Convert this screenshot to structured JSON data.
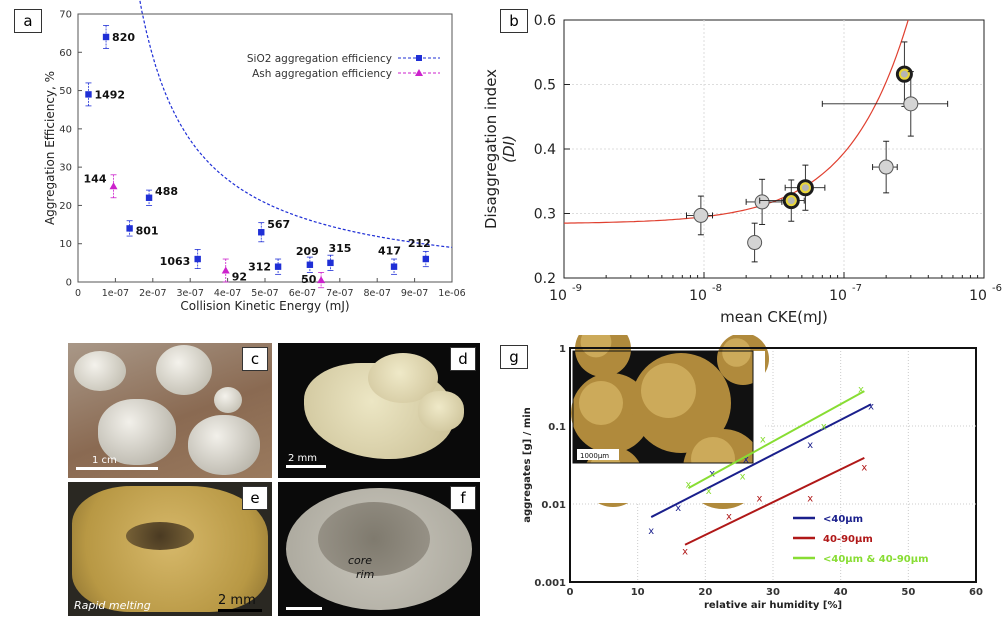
{
  "panels": {
    "a": "a",
    "b": "b",
    "c": "c",
    "d": "d",
    "e": "e",
    "f": "f",
    "g": "g"
  },
  "chart_data": [
    {
      "id": "a",
      "type": "scatter",
      "xlabel": "Collision Kinetic Energy (mJ)",
      "ylabel": "Aggregation Efficiency, %",
      "xlim": [
        0,
        1e-06
      ],
      "ylim": [
        0,
        70
      ],
      "x_ticks": [
        "0",
        "1e-07",
        "2e-07",
        "3e-07",
        "4e-07",
        "5e-07",
        "6e-07",
        "7e-07",
        "8e-07",
        "9e-07",
        "1e-06"
      ],
      "y_ticks": [
        "0",
        "10",
        "20",
        "30",
        "40",
        "50",
        "60",
        "70"
      ],
      "legend_position": "top-right",
      "series": [
        {
          "name": "SiO2 aggregation efficiency",
          "color": "#1f2fd6",
          "marker": "square",
          "x": [
            2.8e-08,
            7.5e-08,
            1.9e-07,
            1.38e-07,
            3.2e-07,
            4.9e-07,
            5.35e-07,
            6.2e-07,
            6.75e-07,
            8.45e-07,
            9.3e-07
          ],
          "y": [
            49,
            64,
            22,
            14,
            6,
            13,
            4,
            4.5,
            5,
            4,
            6
          ],
          "err": [
            3,
            3,
            2,
            2,
            2.5,
            2.5,
            2,
            2,
            2,
            2,
            2
          ],
          "labels": [
            "1492",
            "820",
            "488",
            "801",
            "1063",
            "567",
            "312",
            "209",
            "315",
            "417",
            "212"
          ]
        },
        {
          "name": "Ash aggregation efficiency",
          "color": "#cc22cc",
          "marker": "triangle",
          "x": [
            9.5e-08,
            3.95e-07,
            6.5e-07
          ],
          "y": [
            25,
            3,
            0.5
          ],
          "err": [
            3,
            3,
            2
          ],
          "labels": [
            "144",
            "92",
            "50"
          ]
        }
      ]
    },
    {
      "id": "b",
      "type": "scatter",
      "xlabel": "mean CKE(mJ)",
      "ylabel_line1": "Disaggregation index",
      "ylabel_line2": "(DI)",
      "xscale": "log",
      "xlim": [
        1e-09,
        1e-06
      ],
      "ylim": [
        0.2,
        0.6
      ],
      "x_ticks": [
        "10",
        "10",
        "10",
        "10"
      ],
      "x_tick_exponents": [
        "-9",
        "-8",
        "-7",
        "-6"
      ],
      "y_ticks": [
        "0.2",
        "0.3",
        "0.4",
        "0.5",
        "0.6"
      ],
      "points": [
        {
          "x": 9.5e-09,
          "y": 0.297,
          "xerr_low": 2e-09,
          "xerr_high": 2e-09,
          "yerr": 0.03,
          "highlight": false
        },
        {
          "x": 2.3e-08,
          "y": 0.255,
          "xerr_low": 0,
          "xerr_high": 0,
          "yerr": 0.03,
          "highlight": false
        },
        {
          "x": 2.6e-08,
          "y": 0.318,
          "xerr_low": 6e-09,
          "xerr_high": 1e-08,
          "yerr": 0.035,
          "highlight": false
        },
        {
          "x": 4.2e-08,
          "y": 0.32,
          "xerr_low": 1.7e-08,
          "xerr_high": 1e-08,
          "yerr": 0.032,
          "highlight": true
        },
        {
          "x": 5.3e-08,
          "y": 0.34,
          "xerr_low": 1.5e-08,
          "xerr_high": 2e-08,
          "yerr": 0.035,
          "highlight": true
        },
        {
          "x": 2e-07,
          "y": 0.372,
          "xerr_low": 4e-08,
          "xerr_high": 4e-08,
          "yerr": 0.04,
          "highlight": false
        },
        {
          "x": 2.7e-07,
          "y": 0.516,
          "xerr_low": 0,
          "xerr_high": 0,
          "yerr": 0.05,
          "highlight": true
        },
        {
          "x": 3e-07,
          "y": 0.47,
          "xerr_low": 2.3e-07,
          "xerr_high": 2.5e-07,
          "yerr": 0.05,
          "highlight": false
        }
      ],
      "fit_color": "#e04030"
    },
    {
      "id": "g",
      "type": "scatter",
      "xlabel": "relative air humidity [%]",
      "ylabel": "aggregates [g] / min",
      "yscale": "log",
      "xlim": [
        0,
        60
      ],
      "ylim": [
        0.001,
        1
      ],
      "x_ticks": [
        "0",
        "10",
        "20",
        "30",
        "40",
        "50",
        "60"
      ],
      "y_ticks": [
        "0.001",
        "0.01",
        "0.1",
        "1"
      ],
      "inset_scale": "1000µm",
      "legend_position": "bottom-right",
      "series": [
        {
          "name": "<40µm",
          "color": "#1a1f8c",
          "x": [
            12,
            16,
            21,
            26,
            35.5,
            44.5
          ],
          "y": [
            0.0046,
            0.009,
            0.025,
            0.038,
            0.058,
            0.18
          ],
          "fit": [
            [
              12,
              0.0068
            ],
            [
              44.5,
              0.19
            ]
          ]
        },
        {
          "name": "40-90µm",
          "color": "#b01818",
          "x": [
            17,
            23.5,
            28,
            35.5,
            43.5
          ],
          "y": [
            0.0025,
            0.007,
            0.012,
            0.012,
            0.03
          ],
          "fit": [
            [
              17,
              0.003
            ],
            [
              43.5,
              0.039
            ]
          ]
        },
        {
          "name": "<40µm & 40-90µm",
          "color": "#88dd33",
          "x": [
            17.5,
            20.5,
            25.5,
            28.5,
            37.5,
            43
          ],
          "y": [
            0.018,
            0.015,
            0.023,
            0.068,
            0.1,
            0.3
          ],
          "fit": [
            [
              17.5,
              0.016
            ],
            [
              43.5,
              0.28
            ]
          ]
        }
      ]
    }
  ],
  "photos": {
    "c_scale": "1 cm",
    "d_scale": "2 mm",
    "e_caption": "Rapid melting",
    "e_scale": "2 mm",
    "f_core": "core",
    "f_rim": "rim"
  }
}
